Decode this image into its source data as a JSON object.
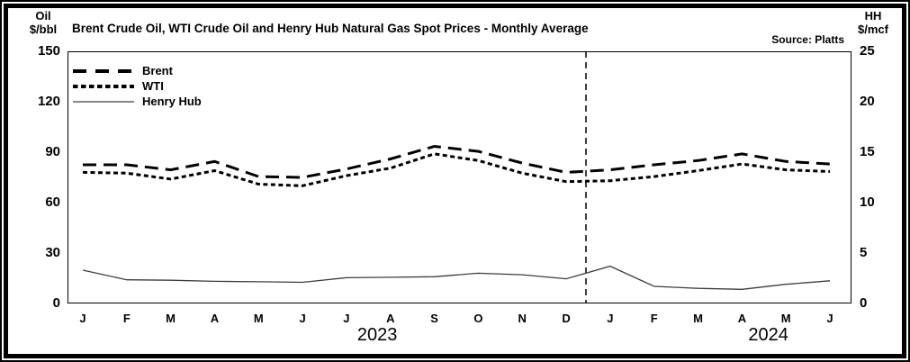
{
  "header": {
    "title": "Brent Crude Oil, WTI Crude Oil and Henry Hub Natural Gas Spot Prices - Monthly Average",
    "source": "Source: Platts",
    "left_axis_unit": "Oil\n$/bbl",
    "right_axis_unit": "HH\n$/mcf"
  },
  "legend": [
    {
      "name": "Brent"
    },
    {
      "name": "WTI"
    },
    {
      "name": "Henry Hub"
    }
  ],
  "axes": {
    "left_ticks": [
      "150",
      "120",
      "90",
      "60",
      "30",
      "0"
    ],
    "right_ticks": [
      "25",
      "20",
      "15",
      "10",
      "5",
      "0"
    ],
    "years": [
      {
        "label": "2023",
        "center_index": 6.7
      },
      {
        "label": "2024",
        "center_index": 15.6
      }
    ]
  },
  "chart_data": {
    "type": "line",
    "title": "Brent Crude Oil, WTI Crude Oil and Henry Hub Natural Gas Spot Prices - Monthly Average",
    "source": "Source: Platts",
    "x": [
      "J",
      "F",
      "M",
      "A",
      "M",
      "J",
      "J",
      "A",
      "S",
      "O",
      "N",
      "D",
      "J",
      "F",
      "M",
      "A",
      "M",
      "J"
    ],
    "x_years": [
      "2023",
      "2024"
    ],
    "series": [
      {
        "name": "Brent",
        "axis": "left",
        "unit": "$/bbl",
        "line": "long-dash",
        "values": [
          82.5,
          82.5,
          79.5,
          84.5,
          75.5,
          75,
          80,
          86,
          93.5,
          90.5,
          83.5,
          78,
          79.5,
          82.5,
          85,
          89,
          84.5,
          83
        ]
      },
      {
        "name": "WTI",
        "axis": "left",
        "unit": "$/bbl",
        "line": "short-dash",
        "values": [
          78,
          77.5,
          74,
          79,
          71,
          70,
          76,
          80.5,
          89,
          85,
          77.5,
          72.5,
          73,
          75.5,
          79,
          83,
          79.5,
          78.5
        ]
      },
      {
        "name": "Henry Hub",
        "axis": "right",
        "unit": "$/mcf",
        "line": "solid",
        "values": [
          3.3,
          2.35,
          2.3,
          2.2,
          2.15,
          2.1,
          2.55,
          2.6,
          2.65,
          3.0,
          2.85,
          2.45,
          3.7,
          1.7,
          1.5,
          1.4,
          1.9,
          2.25
        ]
      }
    ],
    "left_ylim": [
      0,
      150
    ],
    "right_ylim": [
      0,
      25
    ],
    "left_tick_step": 30,
    "right_tick_step": 5,
    "divider_x_index": 11.45,
    "legend_position": "top-left",
    "grid": false
  },
  "colors": {
    "line_black": "#000000",
    "henry_hub_line": "#3d3d3d",
    "background": "#ffffff",
    "frame": "#000000"
  }
}
